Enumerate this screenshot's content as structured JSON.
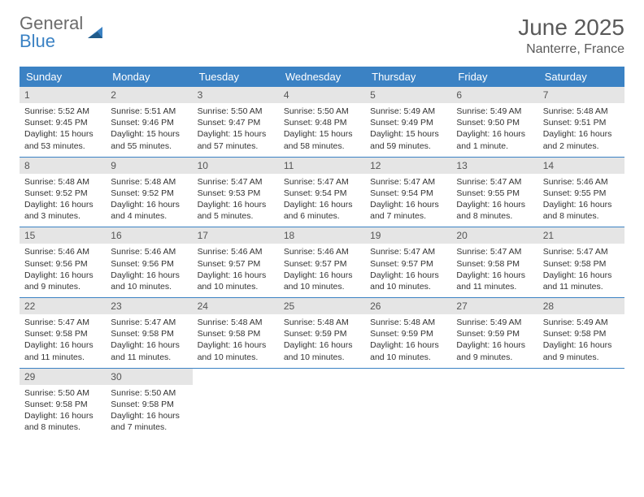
{
  "logo": {
    "word1": "General",
    "word2": "Blue"
  },
  "title": {
    "month": "June 2025",
    "location": "Nanterre, France"
  },
  "colors": {
    "header_bg": "#3b82c4",
    "header_text": "#ffffff",
    "daynum_bg": "#e5e5e5",
    "border": "#3b82c4",
    "text": "#333333",
    "logo_gray": "#6b6b6b",
    "logo_blue": "#3b82c4"
  },
  "weekdays": [
    "Sunday",
    "Monday",
    "Tuesday",
    "Wednesday",
    "Thursday",
    "Friday",
    "Saturday"
  ],
  "weeks": [
    [
      {
        "n": "1",
        "sr": "Sunrise: 5:52 AM",
        "ss": "Sunset: 9:45 PM",
        "dl1": "Daylight: 15 hours",
        "dl2": "and 53 minutes."
      },
      {
        "n": "2",
        "sr": "Sunrise: 5:51 AM",
        "ss": "Sunset: 9:46 PM",
        "dl1": "Daylight: 15 hours",
        "dl2": "and 55 minutes."
      },
      {
        "n": "3",
        "sr": "Sunrise: 5:50 AM",
        "ss": "Sunset: 9:47 PM",
        "dl1": "Daylight: 15 hours",
        "dl2": "and 57 minutes."
      },
      {
        "n": "4",
        "sr": "Sunrise: 5:50 AM",
        "ss": "Sunset: 9:48 PM",
        "dl1": "Daylight: 15 hours",
        "dl2": "and 58 minutes."
      },
      {
        "n": "5",
        "sr": "Sunrise: 5:49 AM",
        "ss": "Sunset: 9:49 PM",
        "dl1": "Daylight: 15 hours",
        "dl2": "and 59 minutes."
      },
      {
        "n": "6",
        "sr": "Sunrise: 5:49 AM",
        "ss": "Sunset: 9:50 PM",
        "dl1": "Daylight: 16 hours",
        "dl2": "and 1 minute."
      },
      {
        "n": "7",
        "sr": "Sunrise: 5:48 AM",
        "ss": "Sunset: 9:51 PM",
        "dl1": "Daylight: 16 hours",
        "dl2": "and 2 minutes."
      }
    ],
    [
      {
        "n": "8",
        "sr": "Sunrise: 5:48 AM",
        "ss": "Sunset: 9:52 PM",
        "dl1": "Daylight: 16 hours",
        "dl2": "and 3 minutes."
      },
      {
        "n": "9",
        "sr": "Sunrise: 5:48 AM",
        "ss": "Sunset: 9:52 PM",
        "dl1": "Daylight: 16 hours",
        "dl2": "and 4 minutes."
      },
      {
        "n": "10",
        "sr": "Sunrise: 5:47 AM",
        "ss": "Sunset: 9:53 PM",
        "dl1": "Daylight: 16 hours",
        "dl2": "and 5 minutes."
      },
      {
        "n": "11",
        "sr": "Sunrise: 5:47 AM",
        "ss": "Sunset: 9:54 PM",
        "dl1": "Daylight: 16 hours",
        "dl2": "and 6 minutes."
      },
      {
        "n": "12",
        "sr": "Sunrise: 5:47 AM",
        "ss": "Sunset: 9:54 PM",
        "dl1": "Daylight: 16 hours",
        "dl2": "and 7 minutes."
      },
      {
        "n": "13",
        "sr": "Sunrise: 5:47 AM",
        "ss": "Sunset: 9:55 PM",
        "dl1": "Daylight: 16 hours",
        "dl2": "and 8 minutes."
      },
      {
        "n": "14",
        "sr": "Sunrise: 5:46 AM",
        "ss": "Sunset: 9:55 PM",
        "dl1": "Daylight: 16 hours",
        "dl2": "and 8 minutes."
      }
    ],
    [
      {
        "n": "15",
        "sr": "Sunrise: 5:46 AM",
        "ss": "Sunset: 9:56 PM",
        "dl1": "Daylight: 16 hours",
        "dl2": "and 9 minutes."
      },
      {
        "n": "16",
        "sr": "Sunrise: 5:46 AM",
        "ss": "Sunset: 9:56 PM",
        "dl1": "Daylight: 16 hours",
        "dl2": "and 10 minutes."
      },
      {
        "n": "17",
        "sr": "Sunrise: 5:46 AM",
        "ss": "Sunset: 9:57 PM",
        "dl1": "Daylight: 16 hours",
        "dl2": "and 10 minutes."
      },
      {
        "n": "18",
        "sr": "Sunrise: 5:46 AM",
        "ss": "Sunset: 9:57 PM",
        "dl1": "Daylight: 16 hours",
        "dl2": "and 10 minutes."
      },
      {
        "n": "19",
        "sr": "Sunrise: 5:47 AM",
        "ss": "Sunset: 9:57 PM",
        "dl1": "Daylight: 16 hours",
        "dl2": "and 10 minutes."
      },
      {
        "n": "20",
        "sr": "Sunrise: 5:47 AM",
        "ss": "Sunset: 9:58 PM",
        "dl1": "Daylight: 16 hours",
        "dl2": "and 11 minutes."
      },
      {
        "n": "21",
        "sr": "Sunrise: 5:47 AM",
        "ss": "Sunset: 9:58 PM",
        "dl1": "Daylight: 16 hours",
        "dl2": "and 11 minutes."
      }
    ],
    [
      {
        "n": "22",
        "sr": "Sunrise: 5:47 AM",
        "ss": "Sunset: 9:58 PM",
        "dl1": "Daylight: 16 hours",
        "dl2": "and 11 minutes."
      },
      {
        "n": "23",
        "sr": "Sunrise: 5:47 AM",
        "ss": "Sunset: 9:58 PM",
        "dl1": "Daylight: 16 hours",
        "dl2": "and 11 minutes."
      },
      {
        "n": "24",
        "sr": "Sunrise: 5:48 AM",
        "ss": "Sunset: 9:58 PM",
        "dl1": "Daylight: 16 hours",
        "dl2": "and 10 minutes."
      },
      {
        "n": "25",
        "sr": "Sunrise: 5:48 AM",
        "ss": "Sunset: 9:59 PM",
        "dl1": "Daylight: 16 hours",
        "dl2": "and 10 minutes."
      },
      {
        "n": "26",
        "sr": "Sunrise: 5:48 AM",
        "ss": "Sunset: 9:59 PM",
        "dl1": "Daylight: 16 hours",
        "dl2": "and 10 minutes."
      },
      {
        "n": "27",
        "sr": "Sunrise: 5:49 AM",
        "ss": "Sunset: 9:59 PM",
        "dl1": "Daylight: 16 hours",
        "dl2": "and 9 minutes."
      },
      {
        "n": "28",
        "sr": "Sunrise: 5:49 AM",
        "ss": "Sunset: 9:58 PM",
        "dl1": "Daylight: 16 hours",
        "dl2": "and 9 minutes."
      }
    ],
    [
      {
        "n": "29",
        "sr": "Sunrise: 5:50 AM",
        "ss": "Sunset: 9:58 PM",
        "dl1": "Daylight: 16 hours",
        "dl2": "and 8 minutes."
      },
      {
        "n": "30",
        "sr": "Sunrise: 5:50 AM",
        "ss": "Sunset: 9:58 PM",
        "dl1": "Daylight: 16 hours",
        "dl2": "and 7 minutes."
      },
      null,
      null,
      null,
      null,
      null
    ]
  ]
}
